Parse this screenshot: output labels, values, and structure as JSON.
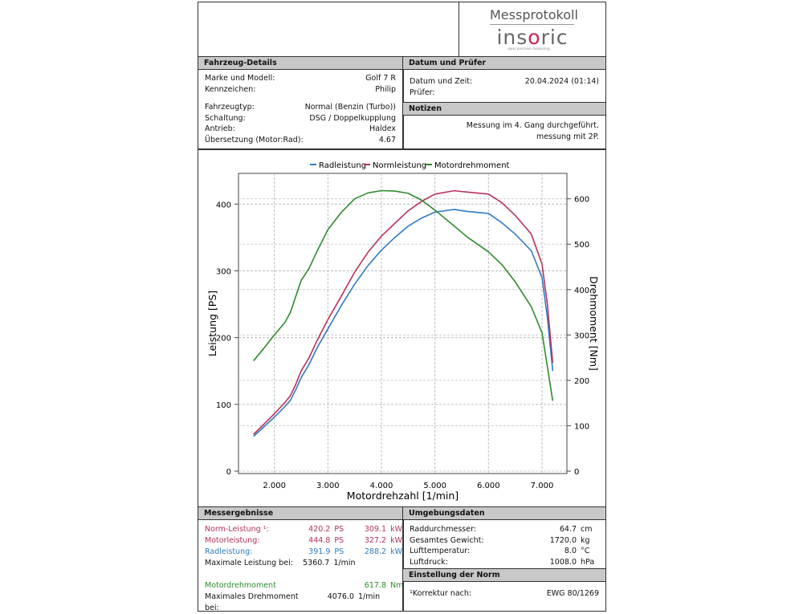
{
  "header": {
    "title": "Messprotokoll",
    "brand": "insoric",
    "tagline": "swiss precision measuring"
  },
  "vehicle": {
    "title": "Fahrzeug-Details",
    "rows": [
      {
        "label": "Marke und Modell:",
        "value": "Golf 7 R"
      },
      {
        "label": "Kennzeichen:",
        "value": "Philip"
      },
      {
        "label": "Fahrzeugtyp:",
        "value": "Normal (Benzin (Turbo))"
      },
      {
        "label": "Schaltung:",
        "value": "DSG / Doppelkupplung"
      },
      {
        "label": "Antrieb:",
        "value": "Haldex"
      },
      {
        "label": "Übersetzung (Motor:Rad):",
        "value": "4.67"
      }
    ]
  },
  "date": {
    "title": "Datum und Prüfer",
    "rows": [
      {
        "label": "Datum und Zeit:",
        "value": "20.04.2024 (01:14)"
      },
      {
        "label": "Prüfer:",
        "value": ""
      }
    ]
  },
  "notes": {
    "title": "Notizen",
    "lines": [
      "Messung im 4. Gang durchgeführt.",
      "messung mit 2P."
    ]
  },
  "results": {
    "title": "Messergebnisse",
    "rows": [
      {
        "label": "Norm-Leistung ¹:",
        "v1": "420.2",
        "u1": "PS",
        "v2": "309.1",
        "u2": "kW",
        "color": "pink"
      },
      {
        "label": "Motorleistung:",
        "v1": "444.8",
        "u1": "PS",
        "v2": "327.2",
        "u2": "kW",
        "color": "pink"
      },
      {
        "label": "Radleistung:",
        "v1": "391.9",
        "u1": "PS",
        "v2": "288.2",
        "u2": "kW",
        "color": "blue"
      },
      {
        "label": "Maximale Leistung bei:",
        "v1": "5360.7",
        "u1": "1/min",
        "v2": "",
        "u2": "",
        "color": ""
      }
    ],
    "torque_label": "Motordrehmoment",
    "torque_value": "617.8",
    "torque_unit": "Nm",
    "max_torque_label": "Maximales Drehmoment bei:",
    "max_torque_value": "4076.0",
    "max_torque_unit": "1/min"
  },
  "environment": {
    "title": "Umgebungsdaten",
    "rows": [
      {
        "label": "Raddurchmesser:",
        "value": "64.7",
        "unit": "cm"
      },
      {
        "label": "Gesamtes Gewicht:",
        "value": "1720.0",
        "unit": "kg"
      },
      {
        "label": "Lufttemperatur:",
        "value": "8.0",
        "unit": "°C"
      },
      {
        "label": "Luftdruck:",
        "value": "1008.0",
        "unit": "hPa"
      }
    ]
  },
  "norm": {
    "title": "Einstellung der Norm",
    "label": "¹Korrektur nach:",
    "value": "EWG 80/1269"
  },
  "chart_data": {
    "type": "line",
    "xlabel": "Motordrehzahl [1/min]",
    "ylabel": "Leistung [PS]",
    "y2label": "Drehmoment [Nm]",
    "xlim": [
      1330,
      7465
    ],
    "ylim": [
      0,
      446
    ],
    "y2lim": [
      0,
      656
    ],
    "xticks": [
      2000,
      3000,
      4000,
      5000,
      6000,
      7000
    ],
    "xtick_labels": [
      "2.000",
      "3.000",
      "4.000",
      "5.000",
      "6.000",
      "7.000"
    ],
    "yticks": [
      0,
      100,
      200,
      300,
      400
    ],
    "y2ticks": [
      0,
      100,
      200,
      300,
      400,
      500,
      600
    ],
    "grid": true,
    "legend": "top",
    "x": [
      1610,
      1800,
      2000,
      2200,
      2300,
      2400,
      2500,
      2650,
      2800,
      3000,
      3250,
      3500,
      3750,
      4000,
      4250,
      4500,
      4750,
      5000,
      5360,
      5600,
      6000,
      6250,
      6500,
      6800,
      7000,
      7100,
      7200
    ],
    "series": [
      {
        "name": "Radleistung",
        "axis": "left",
        "color": "#2e7bc4",
        "values": [
          52,
          66,
          81,
          97,
          106,
          122,
          140,
          160,
          185,
          213,
          248,
          280,
          308,
          331,
          350,
          367,
          379,
          388,
          392,
          389,
          386,
          372,
          355,
          330,
          290,
          230,
          150
        ]
      },
      {
        "name": "Normleistung",
        "axis": "left",
        "color": "#b8325e",
        "values": [
          55,
          70,
          86,
          103,
          113,
          130,
          150,
          170,
          196,
          227,
          262,
          298,
          328,
          352,
          371,
          390,
          404,
          415,
          420,
          418,
          415,
          402,
          383,
          355,
          310,
          250,
          162
        ]
      },
      {
        "name": "Motordrehmoment",
        "axis": "right",
        "color": "#2e8b2e",
        "values": [
          243,
          270,
          300,
          328,
          350,
          385,
          420,
          447,
          485,
          532,
          570,
          600,
          613,
          618,
          617,
          612,
          597,
          575,
          540,
          516,
          483,
          455,
          417,
          362,
          305,
          230,
          155
        ]
      }
    ]
  }
}
